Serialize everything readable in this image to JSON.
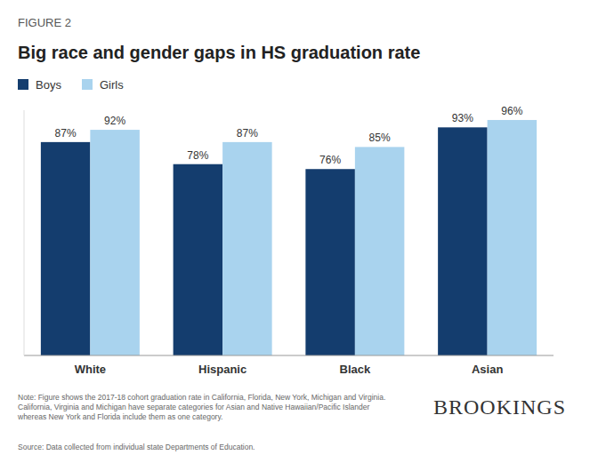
{
  "chart_data": {
    "type": "bar",
    "title": "Big race and gender gaps in HS graduation rate",
    "annotations": [
      "FIGURE 2",
      "Note: Figure shows the 2017-18 cohort graduation rate in California, Florida, New York, Michigan and Virginia. California, Virginia and Michigan have separate categories for Asian and Native Hawaiian/Pacific Islander whereas New York and Florida include them as one category.",
      "Source: Data collected from individual state Departments of Education.",
      "BROOKINGS"
    ],
    "categories": [
      "White",
      "Hispanic",
      "Black",
      "Asian"
    ],
    "series": [
      {
        "name": "Boys",
        "color": "#143d6e",
        "values": [
          87,
          78,
          76,
          93
        ],
        "value_labels": [
          "87%",
          "78%",
          "76%",
          "93%"
        ]
      },
      {
        "name": "Girls",
        "color": "#a9d3ee",
        "values": [
          92,
          87,
          85,
          96
        ],
        "value_labels": [
          "92%",
          "87%",
          "85%",
          "96%"
        ]
      }
    ],
    "ylim": [
      0,
      100
    ],
    "grid": false,
    "legend": "top-left",
    "data_labels": true,
    "tick_labels": "x"
  }
}
